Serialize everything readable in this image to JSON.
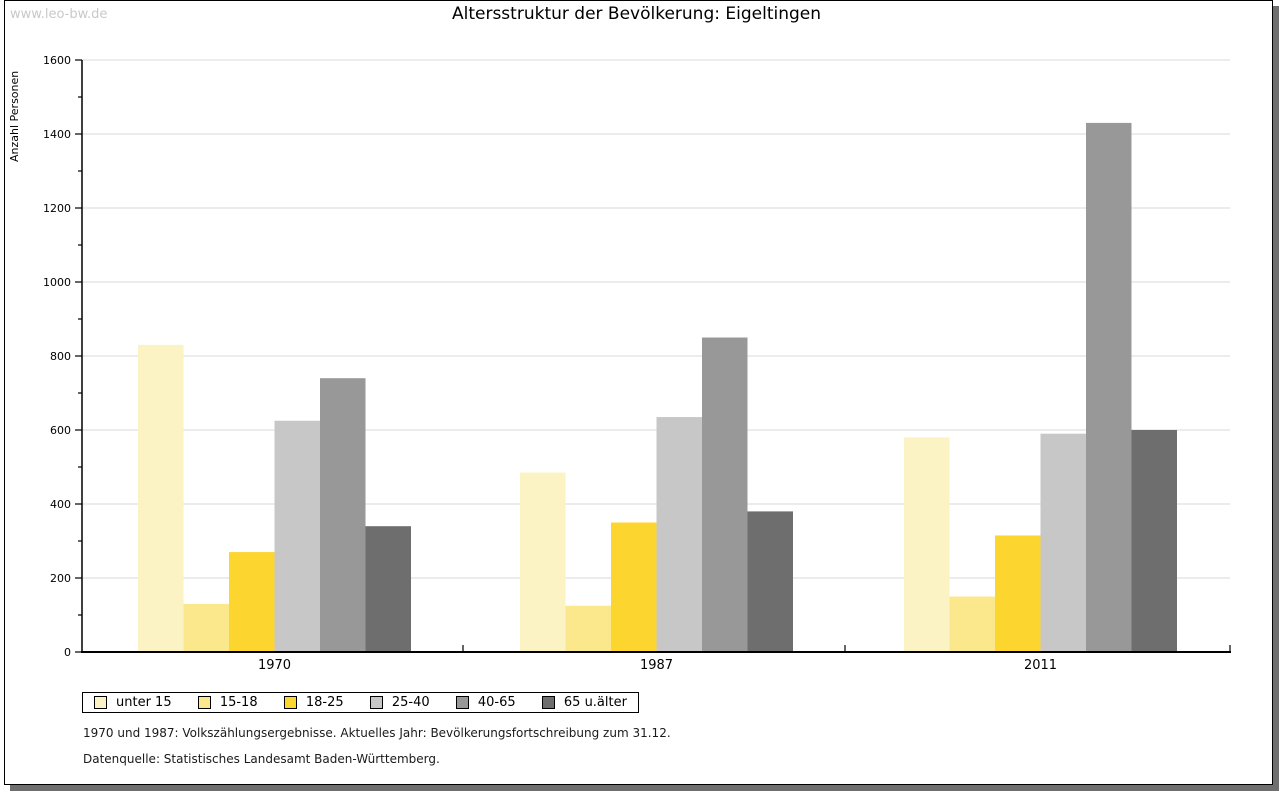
{
  "watermark": "www.leo-bw.de",
  "title": "Altersstruktur der Bevölkerung: Eigeltingen",
  "chart_data": {
    "type": "bar",
    "title": "Altersstruktur der Bevölkerung: Eigeltingen",
    "xlabel": "",
    "ylabel": "Anzahl Personen",
    "ylim": [
      0,
      1600
    ],
    "ytick_step": 200,
    "minor_tick_step": 100,
    "grid": true,
    "legend_position": "bottom",
    "categories": [
      "1970",
      "1987",
      "2011"
    ],
    "series": [
      {
        "name": "unter 15",
        "color": "#FBF3C3",
        "values": [
          830,
          485,
          580
        ]
      },
      {
        "name": "15-18",
        "color": "#FCE88C",
        "values": [
          130,
          125,
          150
        ]
      },
      {
        "name": "18-25",
        "color": "#FCD52F",
        "values": [
          270,
          350,
          315
        ]
      },
      {
        "name": "25-40",
        "color": "#C7C7C7",
        "values": [
          625,
          635,
          590
        ]
      },
      {
        "name": "40-65",
        "color": "#989898",
        "values": [
          740,
          850,
          1430
        ]
      },
      {
        "name": "65 u.älter",
        "color": "#6E6E6E",
        "values": [
          340,
          380,
          600
        ]
      }
    ]
  },
  "footnotes": [
    "1970 und 1987: Volkszählungsergebnisse. Aktuelles Jahr: Bevölkerungsfortschreibung zum 31.12.",
    "Datenquelle: Statistisches Landesamt Baden-Württemberg."
  ]
}
